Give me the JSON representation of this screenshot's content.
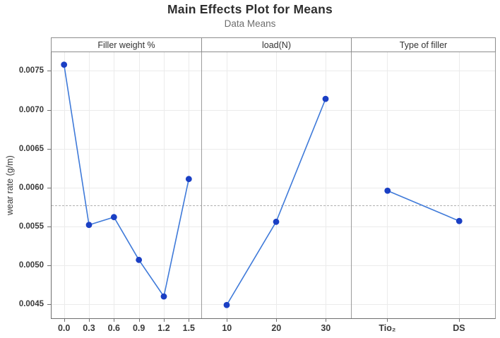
{
  "chart_data": {
    "type": "line",
    "subtype": "main-effects-panels",
    "title": "Main Effects Plot for Means",
    "subtitle": "Data Means",
    "ylabel": "wear rate (g/m)",
    "ylim": [
      0.00432,
      0.00774
    ],
    "yticks": [
      "0.0045",
      "0.0050",
      "0.0055",
      "0.0060",
      "0.0065",
      "0.0070",
      "0.0075"
    ],
    "grand_mean_reference": 0.00577,
    "grid": true,
    "legend": "none",
    "panels": [
      {
        "label": "Filler weight %",
        "categories": [
          "0.0",
          "0.3",
          "0.6",
          "0.9",
          "1.2",
          "1.5"
        ],
        "values": [
          0.00758,
          0.00552,
          0.00562,
          0.00507,
          0.0046,
          0.00611
        ]
      },
      {
        "label": "load(N)",
        "categories": [
          "10",
          "20",
          "30"
        ],
        "values": [
          0.00449,
          0.00556,
          0.00714
        ]
      },
      {
        "label": "Type of filler",
        "categories": [
          "Tio₂",
          "DS"
        ],
        "values": [
          0.00596,
          0.00557
        ]
      }
    ],
    "colors": {
      "line": "#3f7ad9",
      "marker": "#1a3fc4",
      "reference_line": "#b0b0b0",
      "gridline": "#ebebeb",
      "axis": "#6f6f6f"
    }
  }
}
